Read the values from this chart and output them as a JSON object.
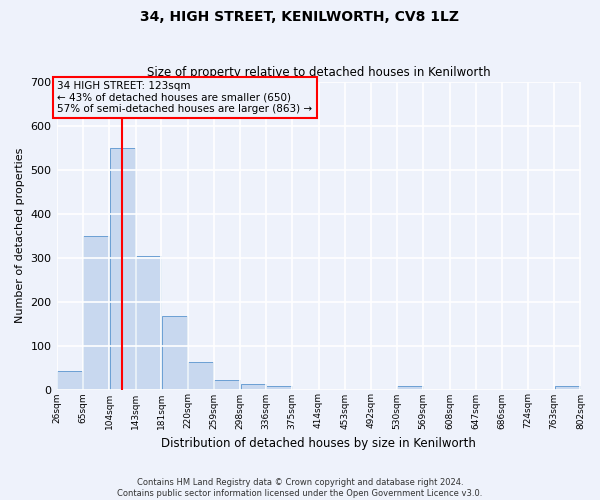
{
  "title": "34, HIGH STREET, KENILWORTH, CV8 1LZ",
  "subtitle": "Size of property relative to detached houses in Kenilworth",
  "xlabel": "Distribution of detached houses by size in Kenilworth",
  "ylabel": "Number of detached properties",
  "footer_line1": "Contains HM Land Registry data © Crown copyright and database right 2024.",
  "footer_line2": "Contains public sector information licensed under the Open Government Licence v3.0.",
  "bar_color": "#c8d8ef",
  "bar_edge_color": "#6b9fd4",
  "background_color": "#eef2fb",
  "grid_color": "#ffffff",
  "annotation_line1": "34 HIGH STREET: 123sqm",
  "annotation_line2": "← 43% of detached houses are smaller (650)",
  "annotation_line3": "57% of semi-detached houses are larger (863) →",
  "redline_x": 123,
  "bin_edges": [
    26,
    65,
    104,
    143,
    181,
    220,
    259,
    298,
    336,
    375,
    414,
    453,
    492,
    530,
    569,
    608,
    647,
    686,
    724,
    763,
    802
  ],
  "bin_labels": [
    "26sqm",
    "65sqm",
    "104sqm",
    "143sqm",
    "181sqm",
    "220sqm",
    "259sqm",
    "298sqm",
    "336sqm",
    "375sqm",
    "414sqm",
    "453sqm",
    "492sqm",
    "530sqm",
    "569sqm",
    "608sqm",
    "647sqm",
    "686sqm",
    "724sqm",
    "763sqm",
    "802sqm"
  ],
  "bar_heights": [
    42,
    350,
    550,
    305,
    168,
    62,
    22,
    12,
    8,
    0,
    0,
    0,
    0,
    8,
    0,
    0,
    0,
    0,
    0,
    8
  ],
  "ylim": [
    0,
    700
  ],
  "yticks": [
    0,
    100,
    200,
    300,
    400,
    500,
    600,
    700
  ]
}
